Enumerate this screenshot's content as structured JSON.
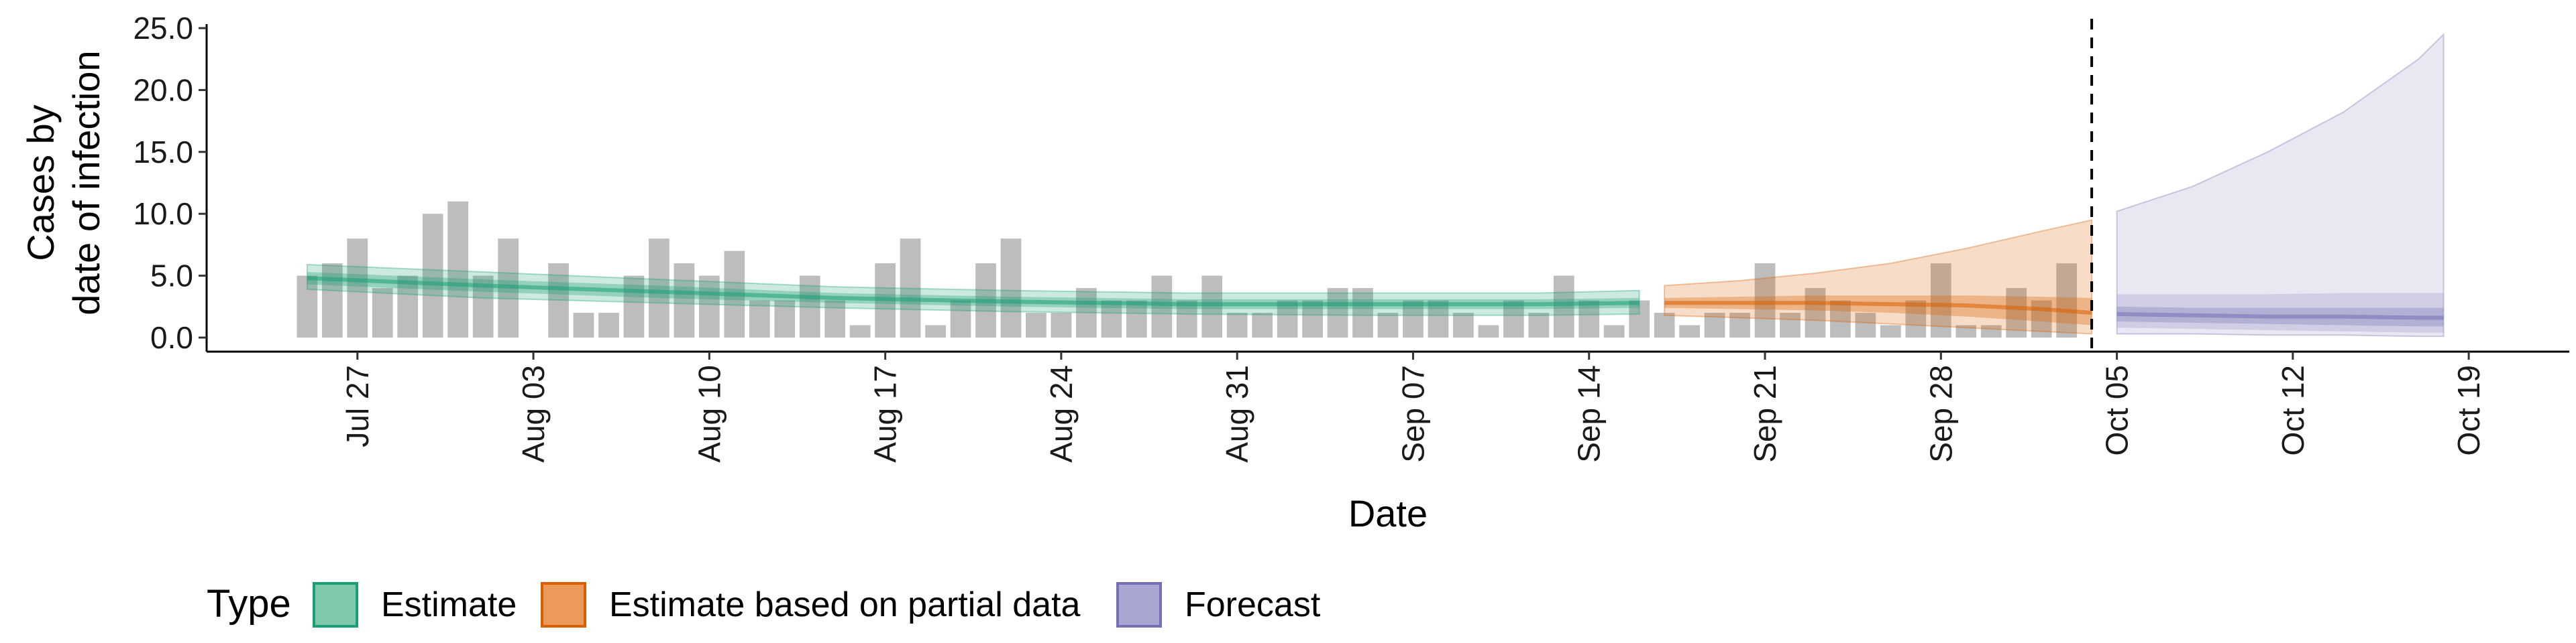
{
  "chart_data": {
    "type": "bar",
    "ylabel_lines": [
      "Cases by",
      "date of infection"
    ],
    "xlabel": "Date",
    "ylim": [
      0,
      25
    ],
    "y_ticks": [
      0,
      5,
      10,
      15,
      20,
      25
    ],
    "y_tick_labels": [
      "0.0",
      "5.0",
      "10.0",
      "15.0",
      "20.0",
      "25.0"
    ],
    "x_range": [
      "2020-07-21",
      "2020-10-23"
    ],
    "x_ticks": [
      "2020-07-27",
      "2020-08-03",
      "2020-08-10",
      "2020-08-17",
      "2020-08-24",
      "2020-08-31",
      "2020-09-07",
      "2020-09-14",
      "2020-09-21",
      "2020-09-28",
      "2020-10-05",
      "2020-10-12",
      "2020-10-19"
    ],
    "x_tick_labels": [
      "Jul 27",
      "Aug 03",
      "Aug 10",
      "Aug 17",
      "Aug 24",
      "Aug 31",
      "Sep 07",
      "Sep 14",
      "Sep 21",
      "Sep 28",
      "Oct 05",
      "Oct 12",
      "Oct 19"
    ],
    "vline_date": "2020-10-04",
    "bars": {
      "start_date": "2020-07-25",
      "values": [
        5,
        6,
        8,
        4,
        5,
        10,
        11,
        5,
        8,
        0,
        6,
        2,
        2,
        5,
        8,
        6,
        5,
        7,
        3,
        3,
        5,
        3,
        1,
        6,
        8,
        1,
        3,
        6,
        8,
        2,
        2,
        4,
        3,
        3,
        5,
        3,
        5,
        2,
        2,
        3,
        3,
        4,
        4,
        2,
        3,
        3,
        2,
        1,
        3,
        2,
        5,
        3,
        1,
        3,
        2,
        1,
        2,
        2,
        6,
        2,
        4,
        3,
        2,
        1,
        3,
        6,
        1,
        1,
        4,
        3,
        6
      ]
    },
    "bands": [
      {
        "name": "Estimate",
        "color": "#1b9e77",
        "x": [
          "2020-07-25",
          "2020-08-01",
          "2020-08-08",
          "2020-08-15",
          "2020-08-22",
          "2020-08-29",
          "2020-09-05",
          "2020-09-12",
          "2020-09-16"
        ],
        "median": [
          4.8,
          4.2,
          3.7,
          3.2,
          2.9,
          2.7,
          2.7,
          2.7,
          2.8
        ],
        "inner_lower": [
          4.3,
          3.7,
          3.2,
          2.8,
          2.5,
          2.3,
          2.3,
          2.3,
          2.4
        ],
        "inner_upper": [
          5.3,
          4.7,
          4.2,
          3.6,
          3.3,
          3.1,
          3.1,
          3.1,
          3.2
        ],
        "outer_lower": [
          3.9,
          3.2,
          2.8,
          2.4,
          2.1,
          1.9,
          1.8,
          1.8,
          1.9
        ],
        "outer_upper": [
          5.9,
          5.3,
          4.7,
          4.1,
          3.8,
          3.6,
          3.6,
          3.6,
          3.8
        ]
      },
      {
        "name": "Estimate based on partial data",
        "color": "#d95f02",
        "x": [
          "2020-09-17",
          "2020-09-20",
          "2020-09-23",
          "2020-09-26",
          "2020-09-29",
          "2020-10-02",
          "2020-10-04"
        ],
        "median": [
          2.8,
          2.8,
          2.8,
          2.7,
          2.6,
          2.3,
          2.0
        ],
        "inner_lower": [
          2.4,
          2.3,
          2.2,
          2.0,
          1.7,
          1.3,
          1.0
        ],
        "inner_upper": [
          3.2,
          3.3,
          3.4,
          3.4,
          3.4,
          3.3,
          3.2
        ],
        "outer_lower": [
          1.8,
          1.6,
          1.4,
          1.1,
          0.8,
          0.5,
          0.3
        ],
        "outer_upper": [
          4.2,
          4.6,
          5.2,
          6.0,
          7.2,
          8.6,
          9.5
        ]
      },
      {
        "name": "Forecast",
        "color": "#7570b3",
        "x": [
          "2020-10-05",
          "2020-10-08",
          "2020-10-11",
          "2020-10-14",
          "2020-10-17",
          "2020-10-18"
        ],
        "median": [
          1.9,
          1.8,
          1.7,
          1.7,
          1.6,
          1.6
        ],
        "inner_lower": [
          1.3,
          1.2,
          1.1,
          1.0,
          0.9,
          0.9
        ],
        "inner_upper": [
          2.5,
          2.4,
          2.4,
          2.4,
          2.4,
          2.4
        ],
        "outer_lower": [
          0.3,
          0.3,
          0.2,
          0.2,
          0.1,
          0.1
        ],
        "outer_upper": [
          10.2,
          12.2,
          15.0,
          18.2,
          22.5,
          24.5
        ],
        "mid_lower": [
          0.8,
          0.7,
          0.6,
          0.5,
          0.4,
          0.4
        ],
        "mid_upper": [
          3.5,
          3.5,
          3.5,
          3.6,
          3.6,
          3.6
        ]
      }
    ],
    "legend": {
      "title": "Type",
      "placement": "bottom",
      "entries": [
        {
          "label": "Estimate",
          "fill": "#7fc8aa",
          "stroke": "#1b9e77"
        },
        {
          "label": "Estimate based on partial data",
          "fill": "#ec9a5c",
          "stroke": "#d95f02"
        },
        {
          "label": "Forecast",
          "fill": "#aaa6d3",
          "stroke": "#7570b3"
        }
      ]
    },
    "colors": {
      "bars": "#bdbdbd",
      "axis": "#000000",
      "vline": "#000000"
    }
  }
}
